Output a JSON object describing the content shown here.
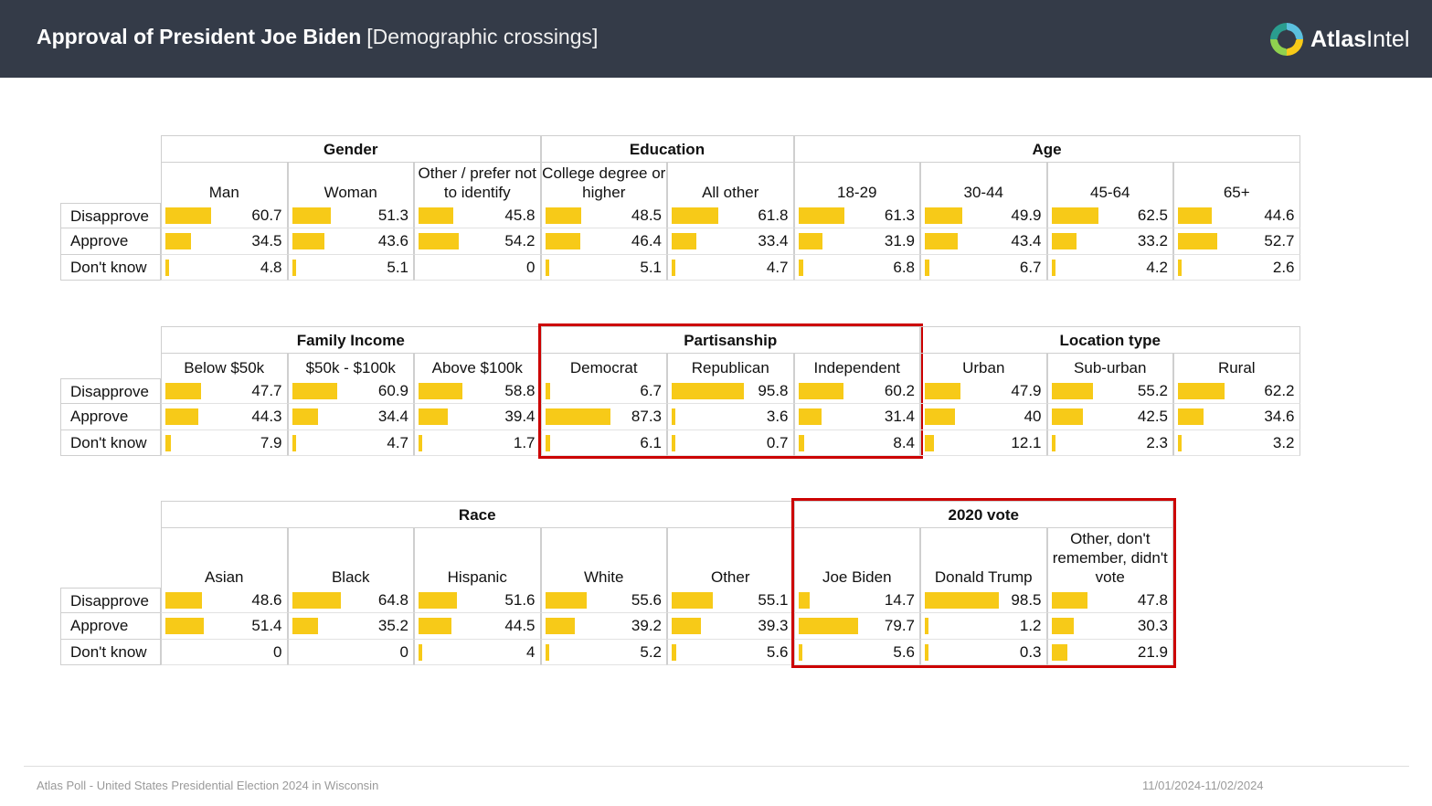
{
  "header": {
    "title": "Approval of President Joe Biden",
    "subtitle": "[Demographic crossings]",
    "logo_bold": "Atlas",
    "logo_regular": "Intel"
  },
  "footer": {
    "source": "Atlas Poll - United States Presidential Election 2024 in Wisconsin",
    "dates": "11/01/2024-11/02/2024"
  },
  "colors": {
    "bar": "#f7ca18",
    "header_bg": "#343b48",
    "highlight": "#cc0000"
  },
  "chart_data": [
    {
      "type": "table",
      "rows": [
        "Disapprove",
        "Approve",
        "Don't know"
      ],
      "groups": [
        {
          "name": "Gender",
          "columns": [
            {
              "label": "Man",
              "values": [
                60.7,
                34.5,
                4.8
              ]
            },
            {
              "label": "Woman",
              "values": [
                51.3,
                43.6,
                5.1
              ]
            },
            {
              "label": "Other / prefer not to identify",
              "values": [
                45.8,
                54.2,
                0
              ]
            }
          ]
        },
        {
          "name": "Education",
          "columns": [
            {
              "label": "College degree or higher",
              "values": [
                48.5,
                46.4,
                5.1
              ]
            },
            {
              "label": "All other",
              "values": [
                61.8,
                33.4,
                4.7
              ]
            }
          ]
        },
        {
          "name": "Age",
          "columns": [
            {
              "label": "18-29",
              "values": [
                61.3,
                31.9,
                6.8
              ]
            },
            {
              "label": "30-44",
              "values": [
                49.9,
                43.4,
                6.7
              ]
            },
            {
              "label": "45-64",
              "values": [
                62.5,
                33.2,
                4.2
              ]
            },
            {
              "label": "65+",
              "values": [
                44.6,
                52.7,
                2.6
              ]
            }
          ]
        }
      ]
    },
    {
      "type": "table",
      "rows": [
        "Disapprove",
        "Approve",
        "Don't know"
      ],
      "groups": [
        {
          "name": "Family Income",
          "columns": [
            {
              "label": "Below $50k",
              "values": [
                47.7,
                44.3,
                7.9
              ]
            },
            {
              "label": "$50k - $100k",
              "values": [
                60.9,
                34.4,
                4.7
              ]
            },
            {
              "label": "Above $100k",
              "values": [
                58.8,
                39.4,
                1.7
              ]
            }
          ]
        },
        {
          "name": "Partisanship",
          "highlight": true,
          "columns": [
            {
              "label": "Democrat",
              "values": [
                6.7,
                87.3,
                6.1
              ]
            },
            {
              "label": "Republican",
              "values": [
                95.8,
                3.6,
                0.7
              ]
            },
            {
              "label": "Independent",
              "values": [
                60.2,
                31.4,
                8.4
              ]
            }
          ]
        },
        {
          "name": "Location type",
          "columns": [
            {
              "label": "Urban",
              "values": [
                47.9,
                40,
                12.1
              ]
            },
            {
              "label": "Sub-urban",
              "values": [
                55.2,
                42.5,
                2.3
              ]
            },
            {
              "label": "Rural",
              "values": [
                62.2,
                34.6,
                3.2
              ]
            }
          ]
        }
      ]
    },
    {
      "type": "table",
      "rows": [
        "Disapprove",
        "Approve",
        "Don't know"
      ],
      "groups": [
        {
          "name": "Race",
          "columns": [
            {
              "label": "Asian",
              "values": [
                48.6,
                51.4,
                0
              ]
            },
            {
              "label": "Black",
              "values": [
                64.8,
                35.2,
                0
              ]
            },
            {
              "label": "Hispanic",
              "values": [
                51.6,
                44.5,
                4
              ]
            },
            {
              "label": "White",
              "values": [
                55.6,
                39.2,
                5.2
              ]
            },
            {
              "label": "Other",
              "values": [
                55.1,
                39.3,
                5.6
              ]
            }
          ]
        },
        {
          "name": "2020 vote",
          "highlight": true,
          "columns": [
            {
              "label": "Joe Biden",
              "values": [
                14.7,
                79.7,
                5.6
              ]
            },
            {
              "label": "Donald Trump",
              "values": [
                98.5,
                1.2,
                0.3
              ]
            },
            {
              "label": "Other, don't remember, didn't vote",
              "values": [
                47.8,
                30.3,
                21.9
              ]
            }
          ]
        }
      ]
    }
  ]
}
